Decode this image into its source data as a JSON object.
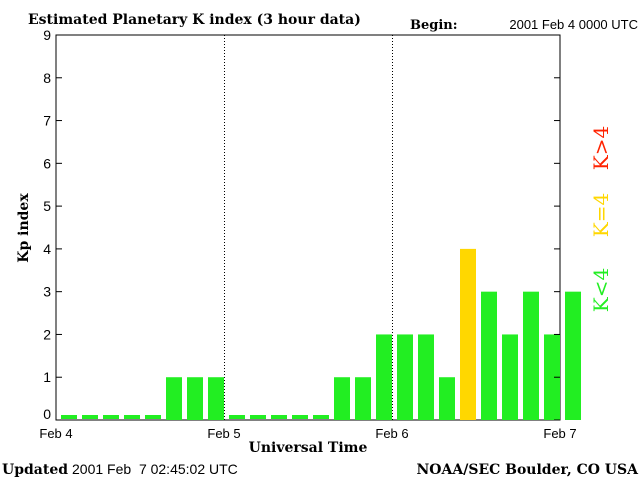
{
  "chart_data": {
    "type": "bar",
    "title": "Estimated Planetary K index (3 hour data)",
    "begin_label": "Begin:",
    "begin_value": "2001 Feb 4 0000 UTC",
    "ylabel": "Kp index",
    "xlabel": "Universal Time",
    "ylim": [
      0,
      9
    ],
    "yticks": [
      "0",
      "1",
      "2",
      "3",
      "4",
      "5",
      "6",
      "7",
      "8",
      "9"
    ],
    "xtick_labels": [
      "Feb 4",
      "Feb 5",
      "Feb 6",
      "Feb 7"
    ],
    "values": [
      0,
      0,
      0,
      0,
      0,
      1,
      1,
      1,
      0,
      0,
      0,
      0,
      0,
      1,
      1,
      2,
      2,
      2,
      1,
      4,
      3,
      2,
      3,
      2,
      3
    ],
    "colors": {
      "low": "#22ee22",
      "equal": "#ffd700",
      "high": "#ff2200"
    },
    "legend": {
      "high": "K>4",
      "equal": "K=4",
      "low": "K<4"
    },
    "grid": "dotted vertical lines at day boundaries"
  },
  "footer": {
    "updated_label": "Updated",
    "updated_value": "2001 Feb  7 02:45:02 UTC",
    "source": "NOAA/SEC Boulder, CO USA"
  }
}
